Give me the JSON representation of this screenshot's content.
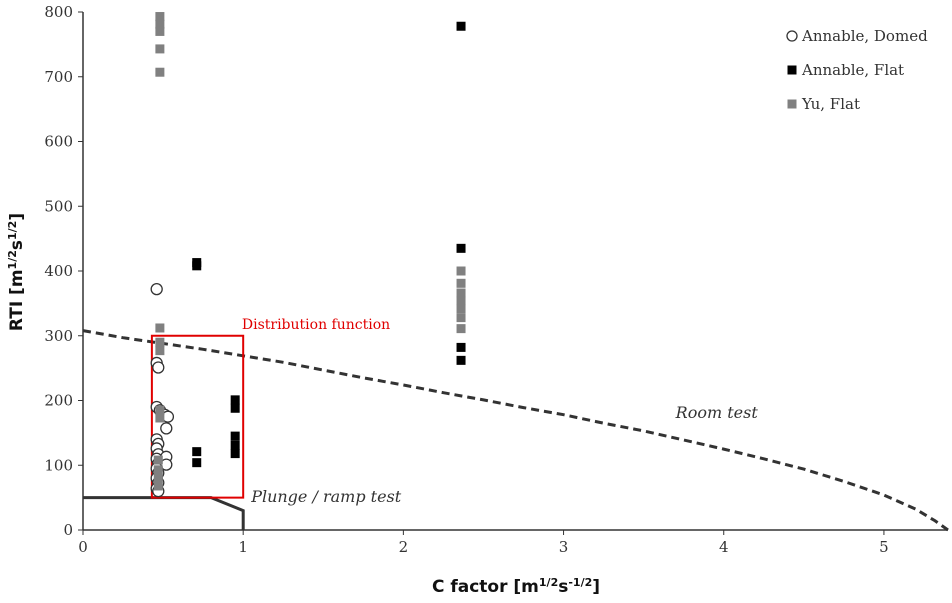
{
  "chart_data": {
    "type": "scatter",
    "title": "",
    "xlabel_main": "C factor [m",
    "xlabel_sup1": "1/2",
    "xlabel_mid": "s",
    "xlabel_sup2": "-1/2",
    "xlabel_end": "]",
    "ylabel_main": "RTI [m",
    "ylabel_sup1": "1/2",
    "ylabel_mid": "s",
    "ylabel_sup2": "1/2",
    "ylabel_end": "]",
    "xlim": [
      0,
      5.4
    ],
    "ylim": [
      0,
      800
    ],
    "xticks": [
      0,
      1,
      2,
      3,
      4,
      5
    ],
    "yticks": [
      0,
      100,
      200,
      300,
      400,
      500,
      600,
      700,
      800
    ],
    "grid": false,
    "legend_placement": "top-right",
    "series": [
      {
        "name": "Annable, Domed",
        "marker": "open-circle",
        "color": "#333333",
        "points": [
          [
            0.46,
            372
          ],
          [
            0.46,
            258
          ],
          [
            0.47,
            251
          ],
          [
            0.46,
            190
          ],
          [
            0.48,
            185
          ],
          [
            0.51,
            178
          ],
          [
            0.53,
            175
          ],
          [
            0.52,
            157
          ],
          [
            0.46,
            140
          ],
          [
            0.47,
            133
          ],
          [
            0.46,
            126
          ],
          [
            0.47,
            117
          ],
          [
            0.46,
            110
          ],
          [
            0.47,
            103
          ],
          [
            0.52,
            113
          ],
          [
            0.52,
            101
          ],
          [
            0.46,
            95
          ],
          [
            0.47,
            88
          ],
          [
            0.46,
            80
          ],
          [
            0.47,
            73
          ],
          [
            0.46,
            64
          ],
          [
            0.47,
            60
          ]
        ]
      },
      {
        "name": "Annable, Flat",
        "marker": "filled-square",
        "color": "#000000",
        "points": [
          [
            2.36,
            778
          ],
          [
            2.36,
            435
          ],
          [
            0.71,
            413
          ],
          [
            0.71,
            408
          ],
          [
            2.36,
            282
          ],
          [
            2.36,
            262
          ],
          [
            0.95,
            201
          ],
          [
            0.95,
            188
          ],
          [
            0.95,
            145
          ],
          [
            0.95,
            131
          ],
          [
            0.95,
            118
          ],
          [
            0.71,
            121
          ],
          [
            0.71,
            104
          ]
        ]
      },
      {
        "name": "Yu, Flat",
        "marker": "filled-square",
        "color": "#808080",
        "points": [
          [
            0.48,
            793
          ],
          [
            0.48,
            781
          ],
          [
            0.48,
            770
          ],
          [
            0.48,
            743
          ],
          [
            0.48,
            707
          ],
          [
            0.48,
            312
          ],
          [
            0.48,
            290
          ],
          [
            0.48,
            277
          ],
          [
            0.48,
            185
          ],
          [
            0.48,
            173
          ],
          [
            2.36,
            400
          ],
          [
            2.36,
            381
          ],
          [
            2.36,
            366
          ],
          [
            2.36,
            354
          ],
          [
            2.36,
            342
          ],
          [
            2.36,
            328
          ],
          [
            2.36,
            311
          ],
          [
            0.47,
            108
          ],
          [
            0.47,
            93
          ],
          [
            0.47,
            80
          ],
          [
            0.47,
            68
          ]
        ]
      }
    ],
    "curves": [
      {
        "label": "Room test",
        "style": "dashed",
        "points": [
          [
            0,
            308
          ],
          [
            0.25,
            297
          ],
          [
            0.5,
            288
          ],
          [
            0.75,
            279
          ],
          [
            1.0,
            269
          ],
          [
            1.25,
            259
          ],
          [
            1.5,
            247
          ],
          [
            1.75,
            235
          ],
          [
            2.0,
            224
          ],
          [
            2.25,
            212
          ],
          [
            2.5,
            201
          ],
          [
            2.75,
            189
          ],
          [
            3.0,
            178
          ],
          [
            3.25,
            165
          ],
          [
            3.5,
            153
          ],
          [
            3.75,
            139
          ],
          [
            4.0,
            125
          ],
          [
            4.25,
            110
          ],
          [
            4.5,
            94
          ],
          [
            4.75,
            75
          ],
          [
            5.0,
            54
          ],
          [
            5.2,
            32
          ],
          [
            5.32,
            14
          ],
          [
            5.4,
            0
          ]
        ]
      },
      {
        "label": "Plunge / ramp test",
        "style": "solid",
        "points": [
          [
            0,
            50
          ],
          [
            0.8,
            50
          ],
          [
            1.0,
            30
          ],
          [
            1.0,
            0
          ]
        ]
      }
    ],
    "annotations": [
      {
        "text": "Distribution function",
        "kind": "rectangle",
        "x0": 0.43,
        "x1": 1.0,
        "y0": 50,
        "y1": 300,
        "color": "#e00000"
      }
    ],
    "curve_label_positions": {
      "Room test": [
        3.7,
        173
      ],
      "Plunge / ramp test": [
        1.05,
        43
      ]
    }
  }
}
